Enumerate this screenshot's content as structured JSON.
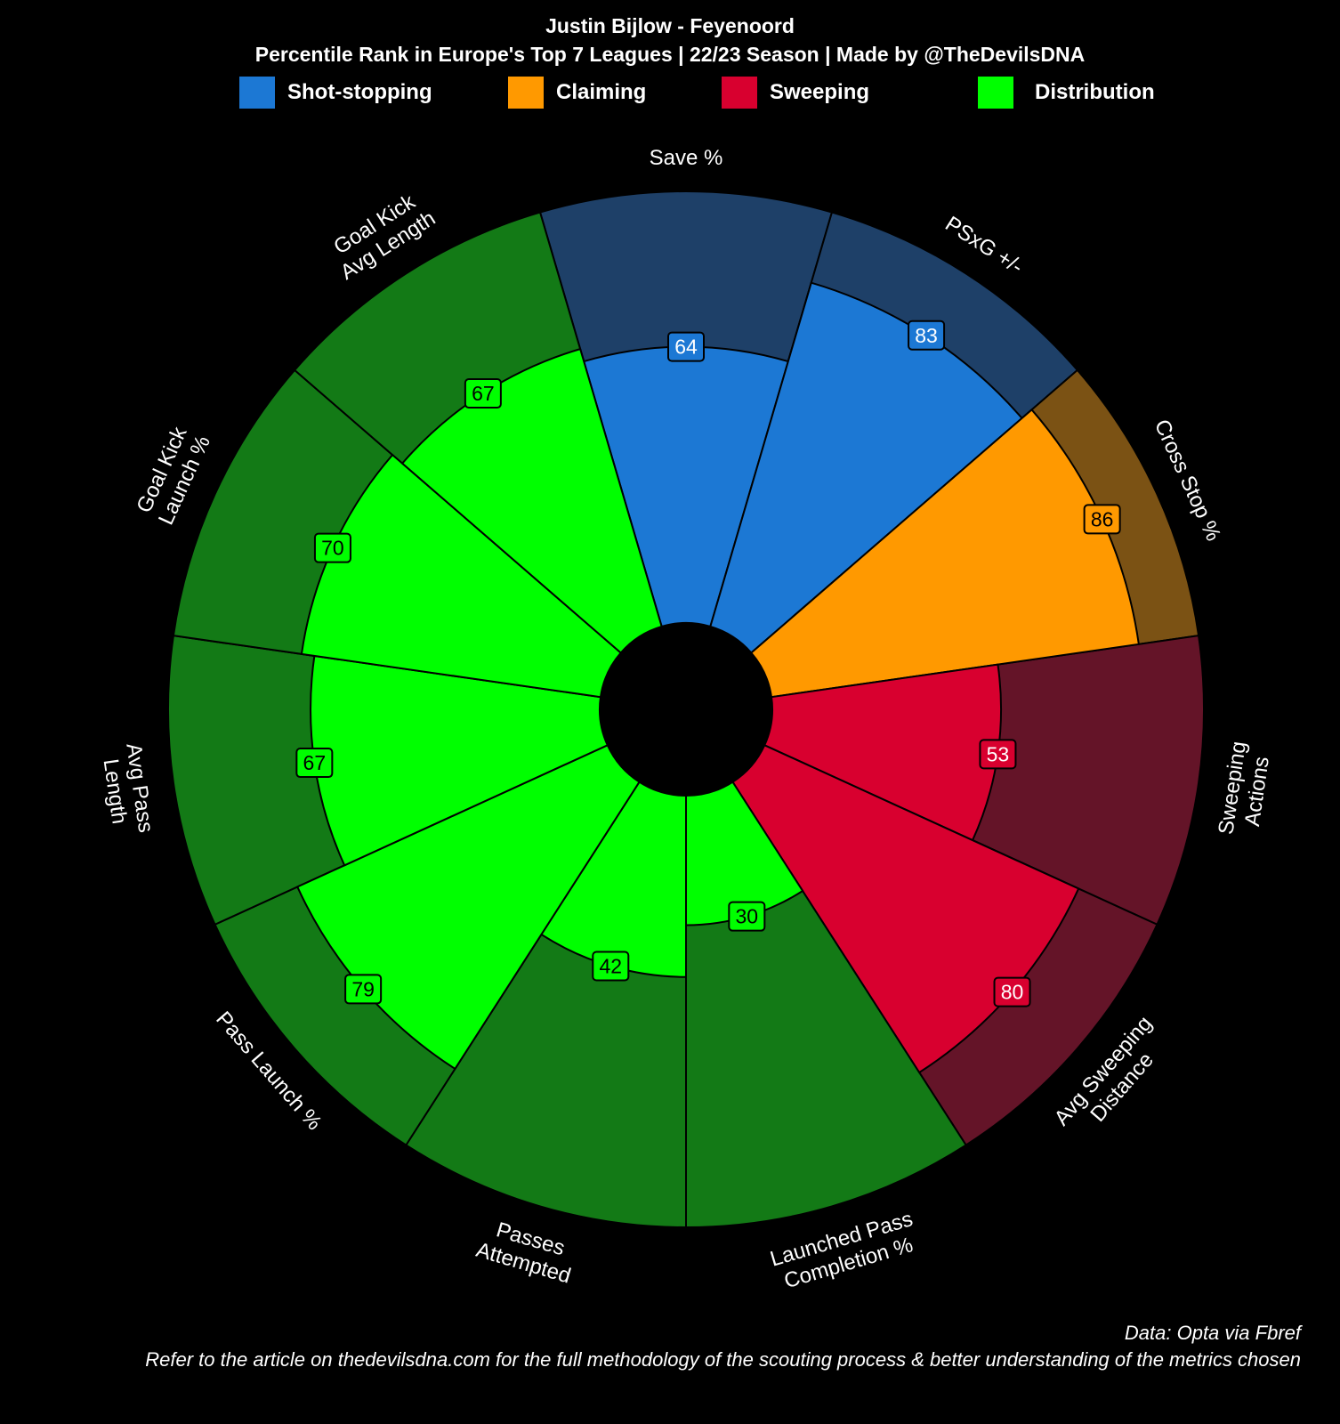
{
  "title": "Justin Bijlow - Feyenoord",
  "subtitle": "Percentile Rank in Europe's Top 7 Leagues | 22/23 Season | Made by @TheDevilsDNA",
  "legend": [
    {
      "label": "Shot-stopping",
      "color": "#1c78d4"
    },
    {
      "label": "Claiming",
      "color": "#ff9900"
    },
    {
      "label": "Sweeping",
      "color": "#d8002f"
    },
    {
      "label": "Distribution",
      "color": "#00ff00"
    }
  ],
  "chart_data": {
    "type": "polar-bar",
    "max": 100,
    "metrics": [
      {
        "label": [
          "Save %"
        ],
        "value": 64,
        "category": "Shot-stopping",
        "color": "#1c78d4",
        "bg": "#1e4068",
        "label_color": "#ffffff"
      },
      {
        "label": [
          "PSxG +/-"
        ],
        "value": 83,
        "category": "Shot-stopping",
        "color": "#1c78d4",
        "bg": "#1e4068",
        "label_color": "#ffffff"
      },
      {
        "label": [
          "Cross Stop %"
        ],
        "value": 86,
        "category": "Claiming",
        "color": "#ff9900",
        "bg": "#7b5214",
        "label_color": "#000000"
      },
      {
        "label": [
          "Sweeping",
          "Actions"
        ],
        "value": 53,
        "category": "Sweeping",
        "color": "#d8002f",
        "bg": "#641428",
        "label_color": "#ffffff"
      },
      {
        "label": [
          "Avg Sweeping",
          "Distance"
        ],
        "value": 80,
        "category": "Sweeping",
        "color": "#d8002f",
        "bg": "#641428",
        "label_color": "#ffffff"
      },
      {
        "label": [
          "Launched Pass",
          "Completion %"
        ],
        "value": 30,
        "category": "Distribution",
        "color": "#00ff00",
        "bg": "#137a16",
        "label_color": "#000000"
      },
      {
        "label": [
          "Passes",
          "Attempted"
        ],
        "value": 42,
        "category": "Distribution",
        "color": "#00ff00",
        "bg": "#137a16",
        "label_color": "#000000"
      },
      {
        "label": [
          "Pass Launch %"
        ],
        "value": 79,
        "category": "Distribution",
        "color": "#00ff00",
        "bg": "#137a16",
        "label_color": "#000000"
      },
      {
        "label": [
          "Avg Pass",
          "Length"
        ],
        "value": 67,
        "category": "Distribution",
        "color": "#00ff00",
        "bg": "#137a16",
        "label_color": "#000000"
      },
      {
        "label": [
          "Goal Kick",
          "Launch %"
        ],
        "value": 70,
        "category": "Distribution",
        "color": "#00ff00",
        "bg": "#137a16",
        "label_color": "#000000"
      },
      {
        "label": [
          "Goal Kick",
          "Avg Length"
        ],
        "value": 67,
        "category": "Distribution",
        "color": "#00ff00",
        "bg": "#137a16",
        "label_color": "#000000"
      }
    ]
  },
  "footer": {
    "source": "Data: Opta via Fbref",
    "note": "Refer to the article on thedevilsdna.com for the full methodology of the scouting process & better understanding of the metrics chosen"
  }
}
